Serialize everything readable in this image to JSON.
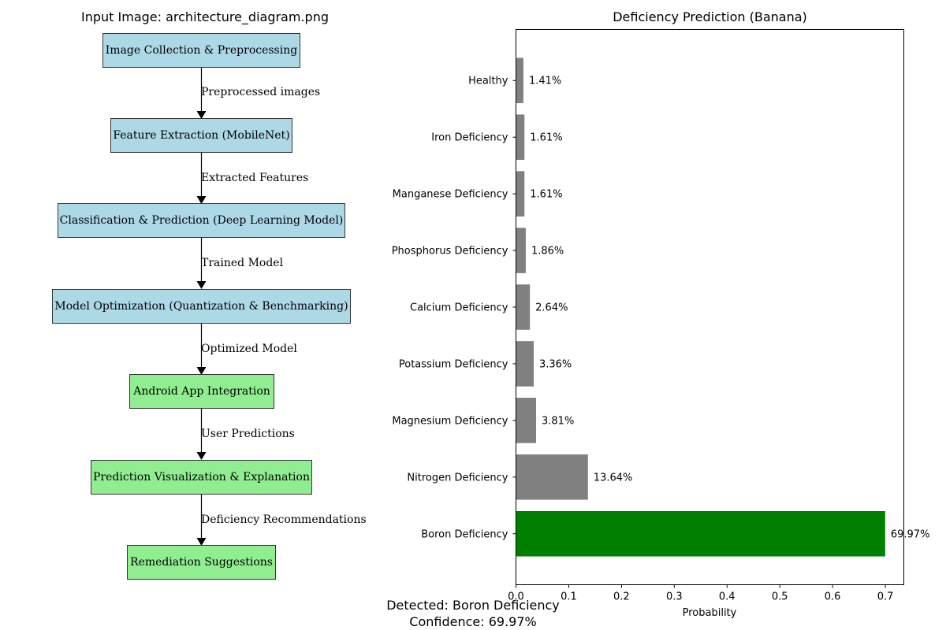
{
  "diagram": {
    "title": "Input Image: architecture_diagram.png",
    "nodes": [
      {
        "label": "Image Collection & Preprocessing",
        "color": "#add8e6"
      },
      {
        "label": "Feature Extraction (MobileNet)",
        "color": "#add8e6"
      },
      {
        "label": "Classification & Prediction (Deep Learning Model)",
        "color": "#add8e6"
      },
      {
        "label": "Model Optimization (Quantization & Benchmarking)",
        "color": "#add8e6"
      },
      {
        "label": "Android App Integration",
        "color": "#90ee90"
      },
      {
        "label": "Prediction Visualization & Explanation",
        "color": "#90ee90"
      },
      {
        "label": "Remediation Suggestions",
        "color": "#90ee90"
      }
    ],
    "edges": [
      {
        "label": "Preprocessed images"
      },
      {
        "label": "Extracted Features"
      },
      {
        "label": "Trained Model"
      },
      {
        "label": "Optimized Model"
      },
      {
        "label": "User Predictions"
      },
      {
        "label": "Deficiency Recommendations"
      }
    ]
  },
  "chart_data": {
    "type": "bar",
    "orientation": "horizontal",
    "title": "Deficiency Prediction (Banana)",
    "xlabel": "Probability",
    "ylabel": "",
    "xlim": [
      0,
      0.735
    ],
    "xticks": [
      "0.0",
      "0.1",
      "0.2",
      "0.3",
      "0.4",
      "0.5",
      "0.6",
      "0.7"
    ],
    "categories": [
      "Boron Deficiency",
      "Nitrogen Deficiency",
      "Magnesium Deficiency",
      "Potassium Deficiency",
      "Calcium Deficiency",
      "Phosphorus Deficiency",
      "Manganese Deficiency",
      "Iron Deficiency",
      "Healthy"
    ],
    "values": [
      0.6997,
      0.1364,
      0.0381,
      0.0336,
      0.0264,
      0.0186,
      0.0161,
      0.0161,
      0.0141
    ],
    "value_labels": [
      "69.97%",
      "13.64%",
      "3.81%",
      "3.36%",
      "2.64%",
      "1.86%",
      "1.61%",
      "1.61%",
      "1.41%"
    ],
    "colors": [
      "#008000",
      "#808080",
      "#808080",
      "#808080",
      "#808080",
      "#808080",
      "#808080",
      "#808080",
      "#808080"
    ],
    "grid": false,
    "legend": "none"
  },
  "result": {
    "detected": "Detected: Boron Deficiency",
    "confidence": "Confidence: 69.97%"
  }
}
